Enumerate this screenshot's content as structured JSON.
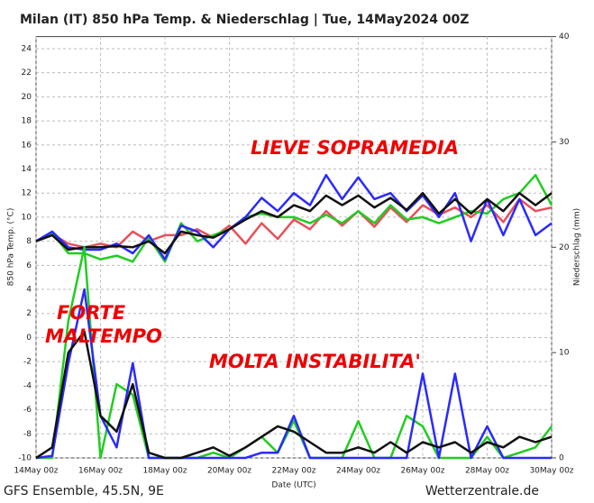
{
  "chart_data": {
    "type": "line",
    "title": "Milan  (IT)  850 hPa Temp. & Niederschlag | Tue, 14May2024 00Z",
    "ylabel": "850 hPa Temp. (°C)",
    "y2label": "Niederschlag (mm)",
    "xlabel": "Date (UTC)",
    "source_left": "GFS Ensemble, 45.5N, 9E",
    "source_right": "Wetterzentrale.de",
    "annotations": [
      "LIEVE SOPRAMEDIA",
      "FORTE",
      "MALTEMPO",
      "MOLTA INSTABILITA'"
    ],
    "annotation_color": "#ee0000",
    "grid": true,
    "x": [
      0,
      12,
      24,
      36,
      48,
      60,
      72,
      84,
      96,
      108,
      120,
      132,
      144,
      156,
      168,
      180,
      192,
      204,
      216,
      228,
      240,
      252,
      264,
      276,
      288,
      300,
      312,
      324,
      336,
      348,
      360,
      372,
      384
    ],
    "xlim": [
      0,
      384
    ],
    "xticks": [
      {
        "value": 0,
        "label": "14May 00z"
      },
      {
        "value": 48,
        "label": "16May 00z"
      },
      {
        "value": 96,
        "label": "18May 00z"
      },
      {
        "value": 144,
        "label": "20May 00z"
      },
      {
        "value": 192,
        "label": "22May 00z"
      },
      {
        "value": 240,
        "label": "24May 00z"
      },
      {
        "value": 288,
        "label": "26May 00z"
      },
      {
        "value": 336,
        "label": "28May 00z"
      },
      {
        "value": 384,
        "label": "30May 00z"
      }
    ],
    "ylim": [
      -10,
      25
    ],
    "yticks": [
      -10,
      -8,
      -6,
      -4,
      -2,
      0,
      2,
      4,
      6,
      8,
      10,
      12,
      14,
      16,
      18,
      20,
      22,
      24
    ],
    "y2lim": [
      0,
      40
    ],
    "y2ticks": [
      0,
      10,
      20,
      30,
      40
    ],
    "series": [
      {
        "color": "#e8505a",
        "width": 2.5,
        "values": [
          8,
          8.6,
          7.8,
          7.5,
          7.8,
          7.5,
          8.8,
          8,
          8.5,
          8.5,
          9,
          8.3,
          9.3,
          7.8,
          9.5,
          8.2,
          9.8,
          9,
          10.5,
          9.3,
          10.5,
          9.2,
          10.8,
          9.6,
          11,
          10.2,
          10.8,
          10,
          11,
          9.6,
          11.5,
          10.5,
          10.8
        ]
      },
      {
        "color": "#22cc22",
        "width": 2.5,
        "values": [
          8,
          8.7,
          7,
          7,
          6.5,
          6.8,
          6.3,
          8.3,
          6.3,
          9.5,
          8,
          8.5,
          9,
          10,
          10.3,
          10,
          10,
          9.5,
          10.2,
          9.5,
          10.5,
          9.5,
          11,
          9.8,
          10,
          9.5,
          10,
          10.5,
          10.3,
          11.5,
          12,
          13.5,
          11
        ]
      },
      {
        "color": "#2a2aff",
        "width": 2.5,
        "values": [
          8,
          8.8,
          7.5,
          7.3,
          7.3,
          7.8,
          7,
          8.5,
          6.5,
          9.3,
          8.8,
          7.5,
          9,
          10,
          11.6,
          10.5,
          12,
          11,
          13.5,
          11.5,
          13.3,
          11.5,
          12,
          10.5,
          11.8,
          10,
          12,
          8,
          11.5,
          8.5,
          11.5,
          8.5,
          9.5
        ]
      },
      {
        "color": "#111111",
        "width": 2.5,
        "values": [
          8,
          8.5,
          7.3,
          7.5,
          7.5,
          7.6,
          7.5,
          8,
          7,
          8.8,
          8.5,
          8.3,
          9,
          9.8,
          10.5,
          10,
          11,
          10.5,
          11.8,
          11,
          11.8,
          10.8,
          11.6,
          10.6,
          12,
          10.3,
          11.5,
          10.3,
          11.5,
          10.5,
          12,
          11,
          12
        ]
      },
      {
        "color": "#22cc22",
        "width": 2.5,
        "axis": "y2",
        "values": [
          0,
          0,
          13,
          20,
          0,
          7,
          6,
          0,
          0,
          0,
          0,
          0.5,
          0,
          1,
          2,
          0.5,
          3.5,
          0,
          0,
          0,
          3.5,
          0,
          0,
          4,
          3,
          0,
          0,
          0,
          2,
          0,
          0.5,
          1,
          3
        ]
      },
      {
        "color": "#2a2aff",
        "width": 2.5,
        "axis": "y2",
        "values": [
          0,
          0.2,
          9,
          16,
          4,
          1,
          9,
          0,
          0,
          0,
          0,
          0,
          0,
          0,
          0.5,
          0.5,
          4,
          0,
          0,
          0,
          0,
          0,
          0,
          0,
          8,
          0,
          8,
          0,
          3,
          0,
          0,
          0,
          0
        ]
      },
      {
        "color": "#111111",
        "width": 2.5,
        "axis": "y2",
        "values": [
          0,
          1,
          10,
          12,
          4,
          2.5,
          7,
          0.5,
          0,
          0,
          0.5,
          1,
          0.2,
          1,
          2,
          3,
          2.5,
          1.5,
          0.5,
          0.5,
          1,
          0.5,
          1.5,
          0.5,
          1.5,
          1,
          1.5,
          0.5,
          1.5,
          1,
          2,
          1.5,
          2
        ]
      }
    ]
  }
}
